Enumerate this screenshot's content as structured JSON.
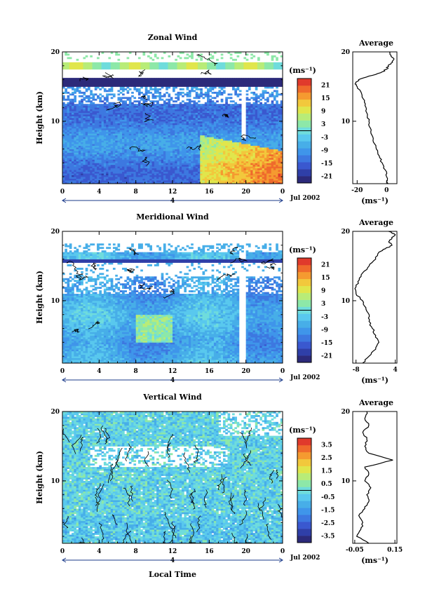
{
  "figure": {
    "xlabel": "Local Time",
    "date_label": "Jul 2002",
    "day_label": "4"
  },
  "colorbar_palette": [
    "#2c2a7a",
    "#2f3fa8",
    "#3a58cf",
    "#3d78e0",
    "#3f95ea",
    "#47aee8",
    "#59c8ee",
    "#6fdcdc",
    "#8de8a8",
    "#b8ec78",
    "#e0e64c",
    "#f2c83c",
    "#f59a30",
    "#ef6a2c",
    "#e03a2c"
  ],
  "chart_data": [
    {
      "type": "heatmap",
      "title": "Zonal Wind",
      "ylabel": "Height (km)",
      "xlim": [
        0,
        24
      ],
      "ylim": [
        1,
        20
      ],
      "x_ticks": [
        "0",
        "4",
        "8",
        "12",
        "16",
        "20",
        "0"
      ],
      "y_ticks": [
        "10",
        "20"
      ],
      "colorbar": {
        "unit": "(ms⁻¹)",
        "ticks": [
          "21",
          "15",
          "9",
          "3",
          "-3",
          "-9",
          "-15",
          "-21"
        ],
        "range": [
          -24,
          24
        ]
      },
      "profile": {
        "title": "Average",
        "xlabel": "(ms⁻¹)",
        "x_ticks": [
          "-20",
          "0"
        ],
        "xlim": [
          -23,
          7
        ],
        "y_ticks": [
          "10",
          "20"
        ],
        "heights": [
          1,
          2,
          3,
          4,
          5,
          6,
          7,
          8,
          9,
          10,
          11,
          12,
          13,
          14,
          15,
          15.5,
          16,
          16.5,
          17,
          17.5,
          18,
          18.5,
          19,
          19.5,
          20
        ],
        "values": [
          1,
          0,
          -1,
          -3,
          -5,
          -7,
          -9,
          -10,
          -11,
          -12,
          -13,
          -14,
          -15,
          -17,
          -20,
          -21,
          -19,
          -12,
          -4,
          0,
          1,
          4,
          5,
          3,
          2
        ]
      }
    },
    {
      "type": "heatmap",
      "title": "Meridional Wind",
      "ylabel": "Height (km)",
      "xlim": [
        0,
        24
      ],
      "ylim": [
        1,
        20
      ],
      "x_ticks": [
        "0",
        "4",
        "8",
        "12",
        "16",
        "20",
        "0"
      ],
      "y_ticks": [
        "10",
        "20"
      ],
      "colorbar": {
        "unit": "(ms⁻¹)",
        "ticks": [
          "21",
          "15",
          "9",
          "3",
          "-3",
          "-9",
          "-15",
          "-21"
        ],
        "range": [
          -24,
          24
        ]
      },
      "profile": {
        "title": "Average",
        "xlabel": "(ms⁻¹)",
        "x_ticks": [
          "-8",
          "4"
        ],
        "xlim": [
          -9,
          4.5
        ],
        "y_ticks": [
          "10",
          "20"
        ],
        "heights": [
          1,
          2,
          3,
          4,
          5,
          6,
          7,
          8,
          9,
          10,
          11,
          12,
          13,
          14,
          15,
          16,
          17,
          17.5,
          18,
          18.5,
          19,
          19.5,
          20
        ],
        "values": [
          -6,
          -4,
          -2,
          -1,
          -2,
          -3,
          -4,
          -4,
          -5,
          -6,
          -8,
          -8,
          -7,
          -6,
          -4,
          -2,
          -1,
          1,
          3,
          2,
          3,
          4,
          2
        ]
      }
    },
    {
      "type": "heatmap",
      "title": "Vertical Wind",
      "ylabel": "Height (km)",
      "xlim": [
        0,
        24
      ],
      "ylim": [
        1,
        20
      ],
      "x_ticks": [
        "0",
        "4",
        "8",
        "12",
        "16",
        "20",
        "0"
      ],
      "y_ticks": [
        "10",
        "20"
      ],
      "colorbar": {
        "unit": "(ms⁻¹)",
        "ticks": [
          "3.5",
          "2.5",
          "1.5",
          "0.5",
          "-0.5",
          "-1.5",
          "-2.5",
          "-3.5"
        ],
        "range": [
          -4,
          4
        ]
      },
      "profile": {
        "title": "Average",
        "xlabel": "(ms⁻¹)",
        "x_ticks": [
          "-0.05",
          "0.15"
        ],
        "xlim": [
          -0.06,
          0.16
        ],
        "y_ticks": [
          "10",
          "20"
        ],
        "heights": [
          1,
          2,
          3,
          4,
          5,
          6,
          7,
          8,
          9,
          10,
          11,
          12,
          13,
          14,
          15,
          16,
          17,
          18,
          19,
          20
        ],
        "values": [
          0.02,
          -0.04,
          -0.02,
          -0.01,
          -0.03,
          0.0,
          0.02,
          0.01,
          0.03,
          0.0,
          0.02,
          0.0,
          0.14,
          0.02,
          0.0,
          0.01,
          -0.01,
          0.02,
          0.0,
          0.01
        ]
      }
    }
  ]
}
